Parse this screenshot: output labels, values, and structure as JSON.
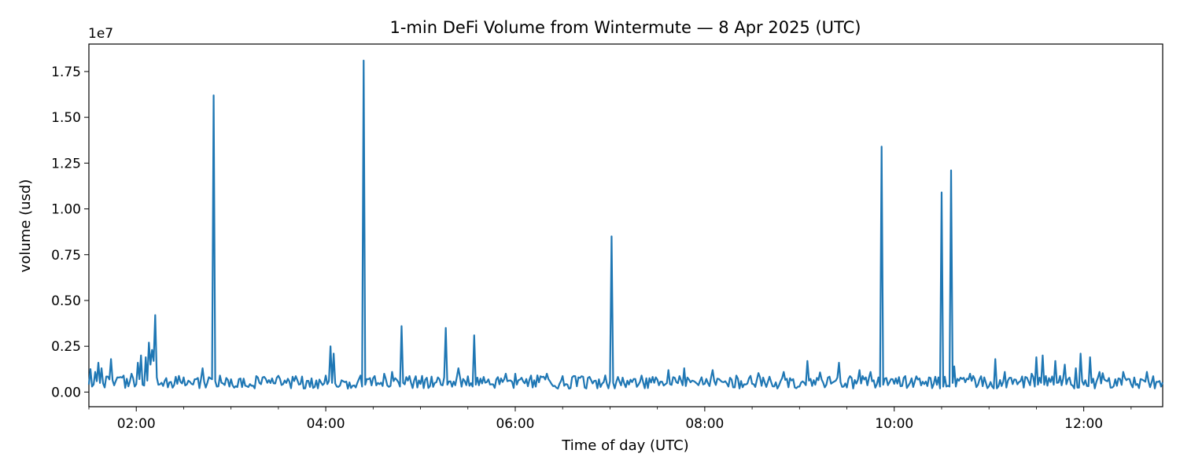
{
  "chart_data": {
    "type": "line",
    "title": "1-min DeFi Volume from Wintermute — 8 Apr 2025 (UTC)",
    "xlabel": "Time of day (UTC)",
    "ylabel": "volume (usd)",
    "y_offset_label": "1e7",
    "xlim": [
      "01:30",
      "12:50"
    ],
    "ylim": [
      -800000,
      19000000
    ],
    "x_ticks": [
      "02:00",
      "04:00",
      "06:00",
      "08:00",
      "10:00",
      "12:00"
    ],
    "y_ticks": [
      {
        "value": 0,
        "label": "0.00"
      },
      {
        "value": 2500000,
        "label": "0.25"
      },
      {
        "value": 5000000,
        "label": "0.50"
      },
      {
        "value": 7500000,
        "label": "0.75"
      },
      {
        "value": 10000000,
        "label": "1.00"
      },
      {
        "value": 12500000,
        "label": "1.25"
      },
      {
        "value": 15000000,
        "label": "1.50"
      },
      {
        "value": 17500000,
        "label": "1.75"
      }
    ],
    "grid": false,
    "legend": "none",
    "baseline": {
      "start": "01:30",
      "end": "12:50",
      "level": 500000,
      "amplitude": 350000
    },
    "series": [
      {
        "color": "#1f77b4",
        "points": [
          [
            "01:31",
            1250000
          ],
          [
            "01:32",
            300000
          ],
          [
            "01:34",
            1100000
          ],
          [
            "01:36",
            1600000
          ],
          [
            "01:37",
            500000
          ],
          [
            "01:38",
            1300000
          ],
          [
            "01:40",
            250000
          ],
          [
            "01:44",
            1800000
          ],
          [
            "01:47",
            600000
          ],
          [
            "01:52",
            900000
          ],
          [
            "01:57",
            1000000
          ],
          [
            "01:59",
            300000
          ],
          [
            "02:01",
            1600000
          ],
          [
            "02:03",
            2000000
          ],
          [
            "02:04",
            400000
          ],
          [
            "02:06",
            1900000
          ],
          [
            "02:08",
            2700000
          ],
          [
            "02:09",
            1500000
          ],
          [
            "02:10",
            2300000
          ],
          [
            "02:11",
            1700000
          ],
          [
            "02:12",
            4200000
          ],
          [
            "02:13",
            800000
          ],
          [
            "02:30",
            800000
          ],
          [
            "02:37",
            700000
          ],
          [
            "02:42",
            1300000
          ],
          [
            "02:45",
            500000
          ],
          [
            "02:48",
            700000
          ],
          [
            "02:49",
            16200000
          ],
          [
            "02:50",
            600000
          ],
          [
            "02:53",
            900000
          ],
          [
            "03:20",
            800000
          ],
          [
            "03:40",
            600000
          ],
          [
            "03:55",
            200000
          ],
          [
            "04:00",
            900000
          ],
          [
            "04:02",
            600000
          ],
          [
            "04:03",
            2500000
          ],
          [
            "04:04",
            500000
          ],
          [
            "04:05",
            2100000
          ],
          [
            "04:07",
            300000
          ],
          [
            "04:20",
            500000
          ],
          [
            "04:22",
            900000
          ],
          [
            "04:23",
            300000
          ],
          [
            "04:24",
            18100000
          ],
          [
            "04:25",
            400000
          ],
          [
            "04:37",
            1000000
          ],
          [
            "04:42",
            1100000
          ],
          [
            "04:47",
            300000
          ],
          [
            "04:48",
            3600000
          ],
          [
            "04:49",
            500000
          ],
          [
            "05:15",
            800000
          ],
          [
            "05:16",
            3500000
          ],
          [
            "05:17",
            400000
          ],
          [
            "05:24",
            1300000
          ],
          [
            "05:28",
            600000
          ],
          [
            "05:33",
            300000
          ],
          [
            "05:34",
            3100000
          ],
          [
            "05:35",
            400000
          ],
          [
            "06:00",
            1000000
          ],
          [
            "06:10",
            900000
          ],
          [
            "06:20",
            1000000
          ],
          [
            "06:40",
            800000
          ],
          [
            "07:00",
            600000
          ],
          [
            "07:01",
            8500000
          ],
          [
            "07:02",
            500000
          ],
          [
            "07:20",
            900000
          ],
          [
            "07:47",
            1300000
          ],
          [
            "07:53",
            600000
          ],
          [
            "08:05",
            1200000
          ],
          [
            "08:20",
            900000
          ],
          [
            "08:50",
            1100000
          ],
          [
            "09:00",
            300000
          ],
          [
            "09:05",
            1700000
          ],
          [
            "09:10",
            400000
          ],
          [
            "09:25",
            1600000
          ],
          [
            "09:28",
            300000
          ],
          [
            "09:38",
            1200000
          ],
          [
            "09:45",
            1100000
          ],
          [
            "09:50",
            800000
          ],
          [
            "09:51",
            300000
          ],
          [
            "09:52",
            13400000
          ],
          [
            "09:53",
            400000
          ],
          [
            "10:10",
            500000
          ],
          [
            "10:22",
            800000
          ],
          [
            "10:28",
            800000
          ],
          [
            "10:29",
            200000
          ],
          [
            "10:30",
            10900000
          ],
          [
            "10:31",
            300000
          ],
          [
            "10:35",
            300000
          ],
          [
            "10:36",
            12100000
          ],
          [
            "10:37",
            500000
          ],
          [
            "10:38",
            1400000
          ],
          [
            "10:39",
            300000
          ],
          [
            "10:48",
            1000000
          ],
          [
            "11:03",
            200000
          ],
          [
            "11:04",
            1800000
          ],
          [
            "11:05",
            200000
          ],
          [
            "11:10",
            1100000
          ],
          [
            "11:20",
            600000
          ],
          [
            "11:29",
            300000
          ],
          [
            "11:30",
            1900000
          ],
          [
            "11:31",
            400000
          ],
          [
            "11:33",
            500000
          ],
          [
            "11:34",
            2000000
          ],
          [
            "11:35",
            400000
          ],
          [
            "11:41",
            400000
          ],
          [
            "11:42",
            1700000
          ],
          [
            "11:43",
            500000
          ],
          [
            "11:48",
            1500000
          ],
          [
            "11:50",
            700000
          ],
          [
            "11:55",
            1300000
          ],
          [
            "11:58",
            2100000
          ],
          [
            "11:59",
            600000
          ],
          [
            "12:04",
            1900000
          ],
          [
            "12:05",
            500000
          ],
          [
            "12:10",
            1100000
          ],
          [
            "12:20",
            700000
          ],
          [
            "12:25",
            1100000
          ],
          [
            "12:40",
            1100000
          ],
          [
            "12:45",
            200000
          ],
          [
            "12:48",
            600000
          ],
          [
            "12:49",
            300000
          ]
        ]
      }
    ]
  }
}
